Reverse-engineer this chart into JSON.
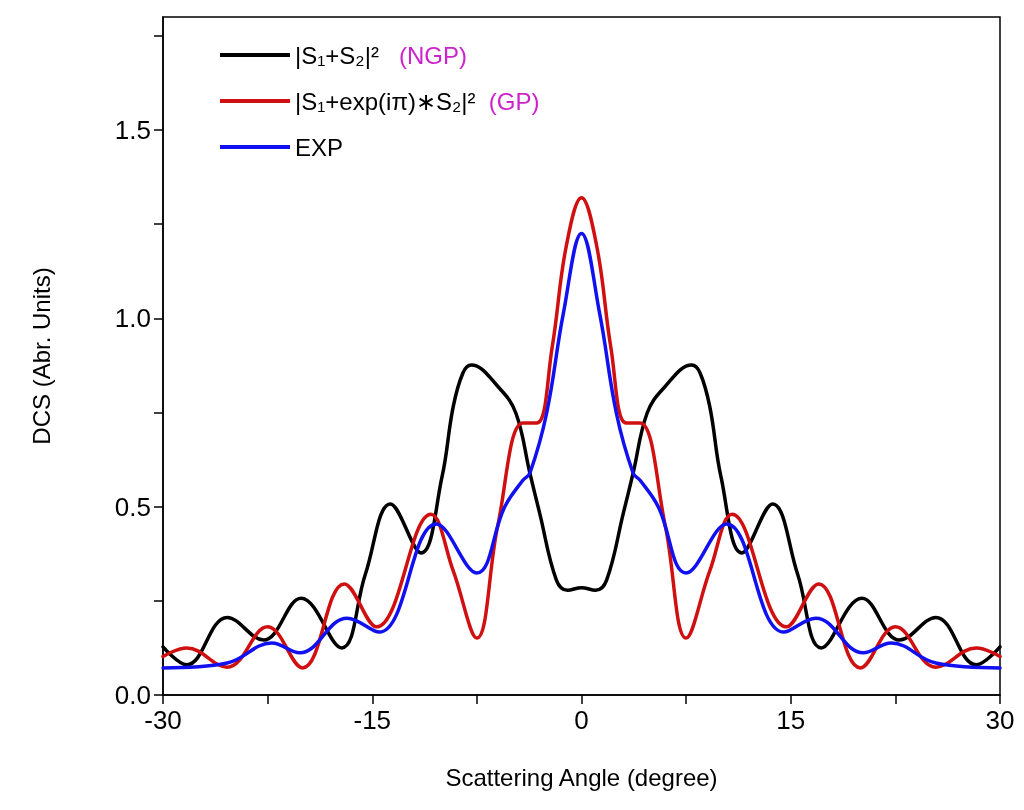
{
  "chart_data": {
    "type": "line",
    "xlabel": "Scattering Angle (degree)",
    "ylabel": "DCS (Abr. Units)",
    "xlim": [
      -30,
      30
    ],
    "ylim": [
      0,
      1.8
    ],
    "xticks": [
      -30,
      {
        "value": -22.5,
        "label": null
      },
      -15,
      {
        "value": -7.5,
        "label": null
      },
      0,
      {
        "value": 7.5,
        "label": null
      },
      15,
      {
        "value": 22.5,
        "label": null
      },
      30
    ],
    "yticks": [
      {
        "value": 0,
        "label": "0.0"
      },
      {
        "value": 0.25,
        "label": null
      },
      0.5,
      {
        "value": 0.75,
        "label": null
      },
      {
        "value": 1,
        "label": "1.0"
      },
      {
        "value": 1.25,
        "label": null
      },
      1.5,
      {
        "value": 1.75,
        "label": null
      }
    ],
    "legend": "top left",
    "series": [
      {
        "name": "|S₁+S₂|²   (NGP)",
        "color": "#000000",
        "x": [
          -30,
          -28.3,
          -25.4,
          -22.8,
          -20.1,
          -17.2,
          -15.5,
          -13.7,
          -11.5,
          -10.0,
          -9.2,
          -8.5,
          -7.9,
          -5.9,
          -4.7,
          -3.7,
          -3.0,
          -1.8,
          -1.0,
          0,
          1.0,
          1.8,
          3.0,
          3.7,
          4.7,
          5.9,
          7.9,
          8.5,
          9.2,
          10.0,
          11.5,
          13.7,
          15.5,
          17.2,
          20.1,
          22.8,
          25.4,
          28.3,
          30
        ],
        "values": [
          0.128,
          0.08,
          0.206,
          0.146,
          0.257,
          0.125,
          0.32,
          0.507,
          0.377,
          0.579,
          0.765,
          0.855,
          0.876,
          0.815,
          0.748,
          0.589,
          0.483,
          0.305,
          0.278,
          0.285,
          0.278,
          0.305,
          0.483,
          0.589,
          0.748,
          0.815,
          0.876,
          0.855,
          0.765,
          0.579,
          0.377,
          0.507,
          0.32,
          0.125,
          0.257,
          0.146,
          0.206,
          0.08,
          0.128
        ]
      },
      {
        "name": "|S₁+exp(iπ)∗S₂|²  (GP)",
        "color": "#d01010",
        "x": [
          -30,
          -28.3,
          -25.4,
          -22.5,
          -20.0,
          -17.0,
          -14.7,
          -10.8,
          -9.2,
          -7.5,
          -6.0,
          -4.2,
          -3.2,
          -2.1,
          -1.1,
          0,
          1.1,
          2.1,
          3.2,
          4.2,
          6.0,
          7.5,
          9.2,
          10.8,
          14.7,
          17.0,
          20.0,
          22.5,
          25.4,
          28.3,
          30
        ],
        "values": [
          0.102,
          0.125,
          0.074,
          0.181,
          0.072,
          0.295,
          0.181,
          0.48,
          0.33,
          0.151,
          0.45,
          0.722,
          0.722,
          0.924,
          1.19,
          1.32,
          1.19,
          0.924,
          0.722,
          0.722,
          0.45,
          0.151,
          0.33,
          0.48,
          0.181,
          0.295,
          0.072,
          0.181,
          0.074,
          0.125,
          0.102
        ]
      },
      {
        "name": "EXP",
        "color": "#1010f0",
        "x": [
          -30,
          -25.4,
          -22.2,
          -20.2,
          -16.8,
          -14.5,
          -10.4,
          -7.5,
          -5.5,
          -4.2,
          -3.7,
          -2.5,
          -1.3,
          0,
          1.3,
          2.5,
          3.7,
          4.2,
          5.5,
          7.5,
          10.4,
          14.5,
          16.8,
          20.2,
          22.2,
          25.4,
          30
        ],
        "values": [
          0.072,
          0.085,
          0.138,
          0.112,
          0.204,
          0.167,
          0.454,
          0.324,
          0.5,
          0.57,
          0.589,
          0.748,
          1.013,
          1.225,
          1.013,
          0.748,
          0.589,
          0.57,
          0.5,
          0.324,
          0.454,
          0.167,
          0.204,
          0.112,
          0.138,
          0.085,
          0.072
        ]
      }
    ]
  }
}
